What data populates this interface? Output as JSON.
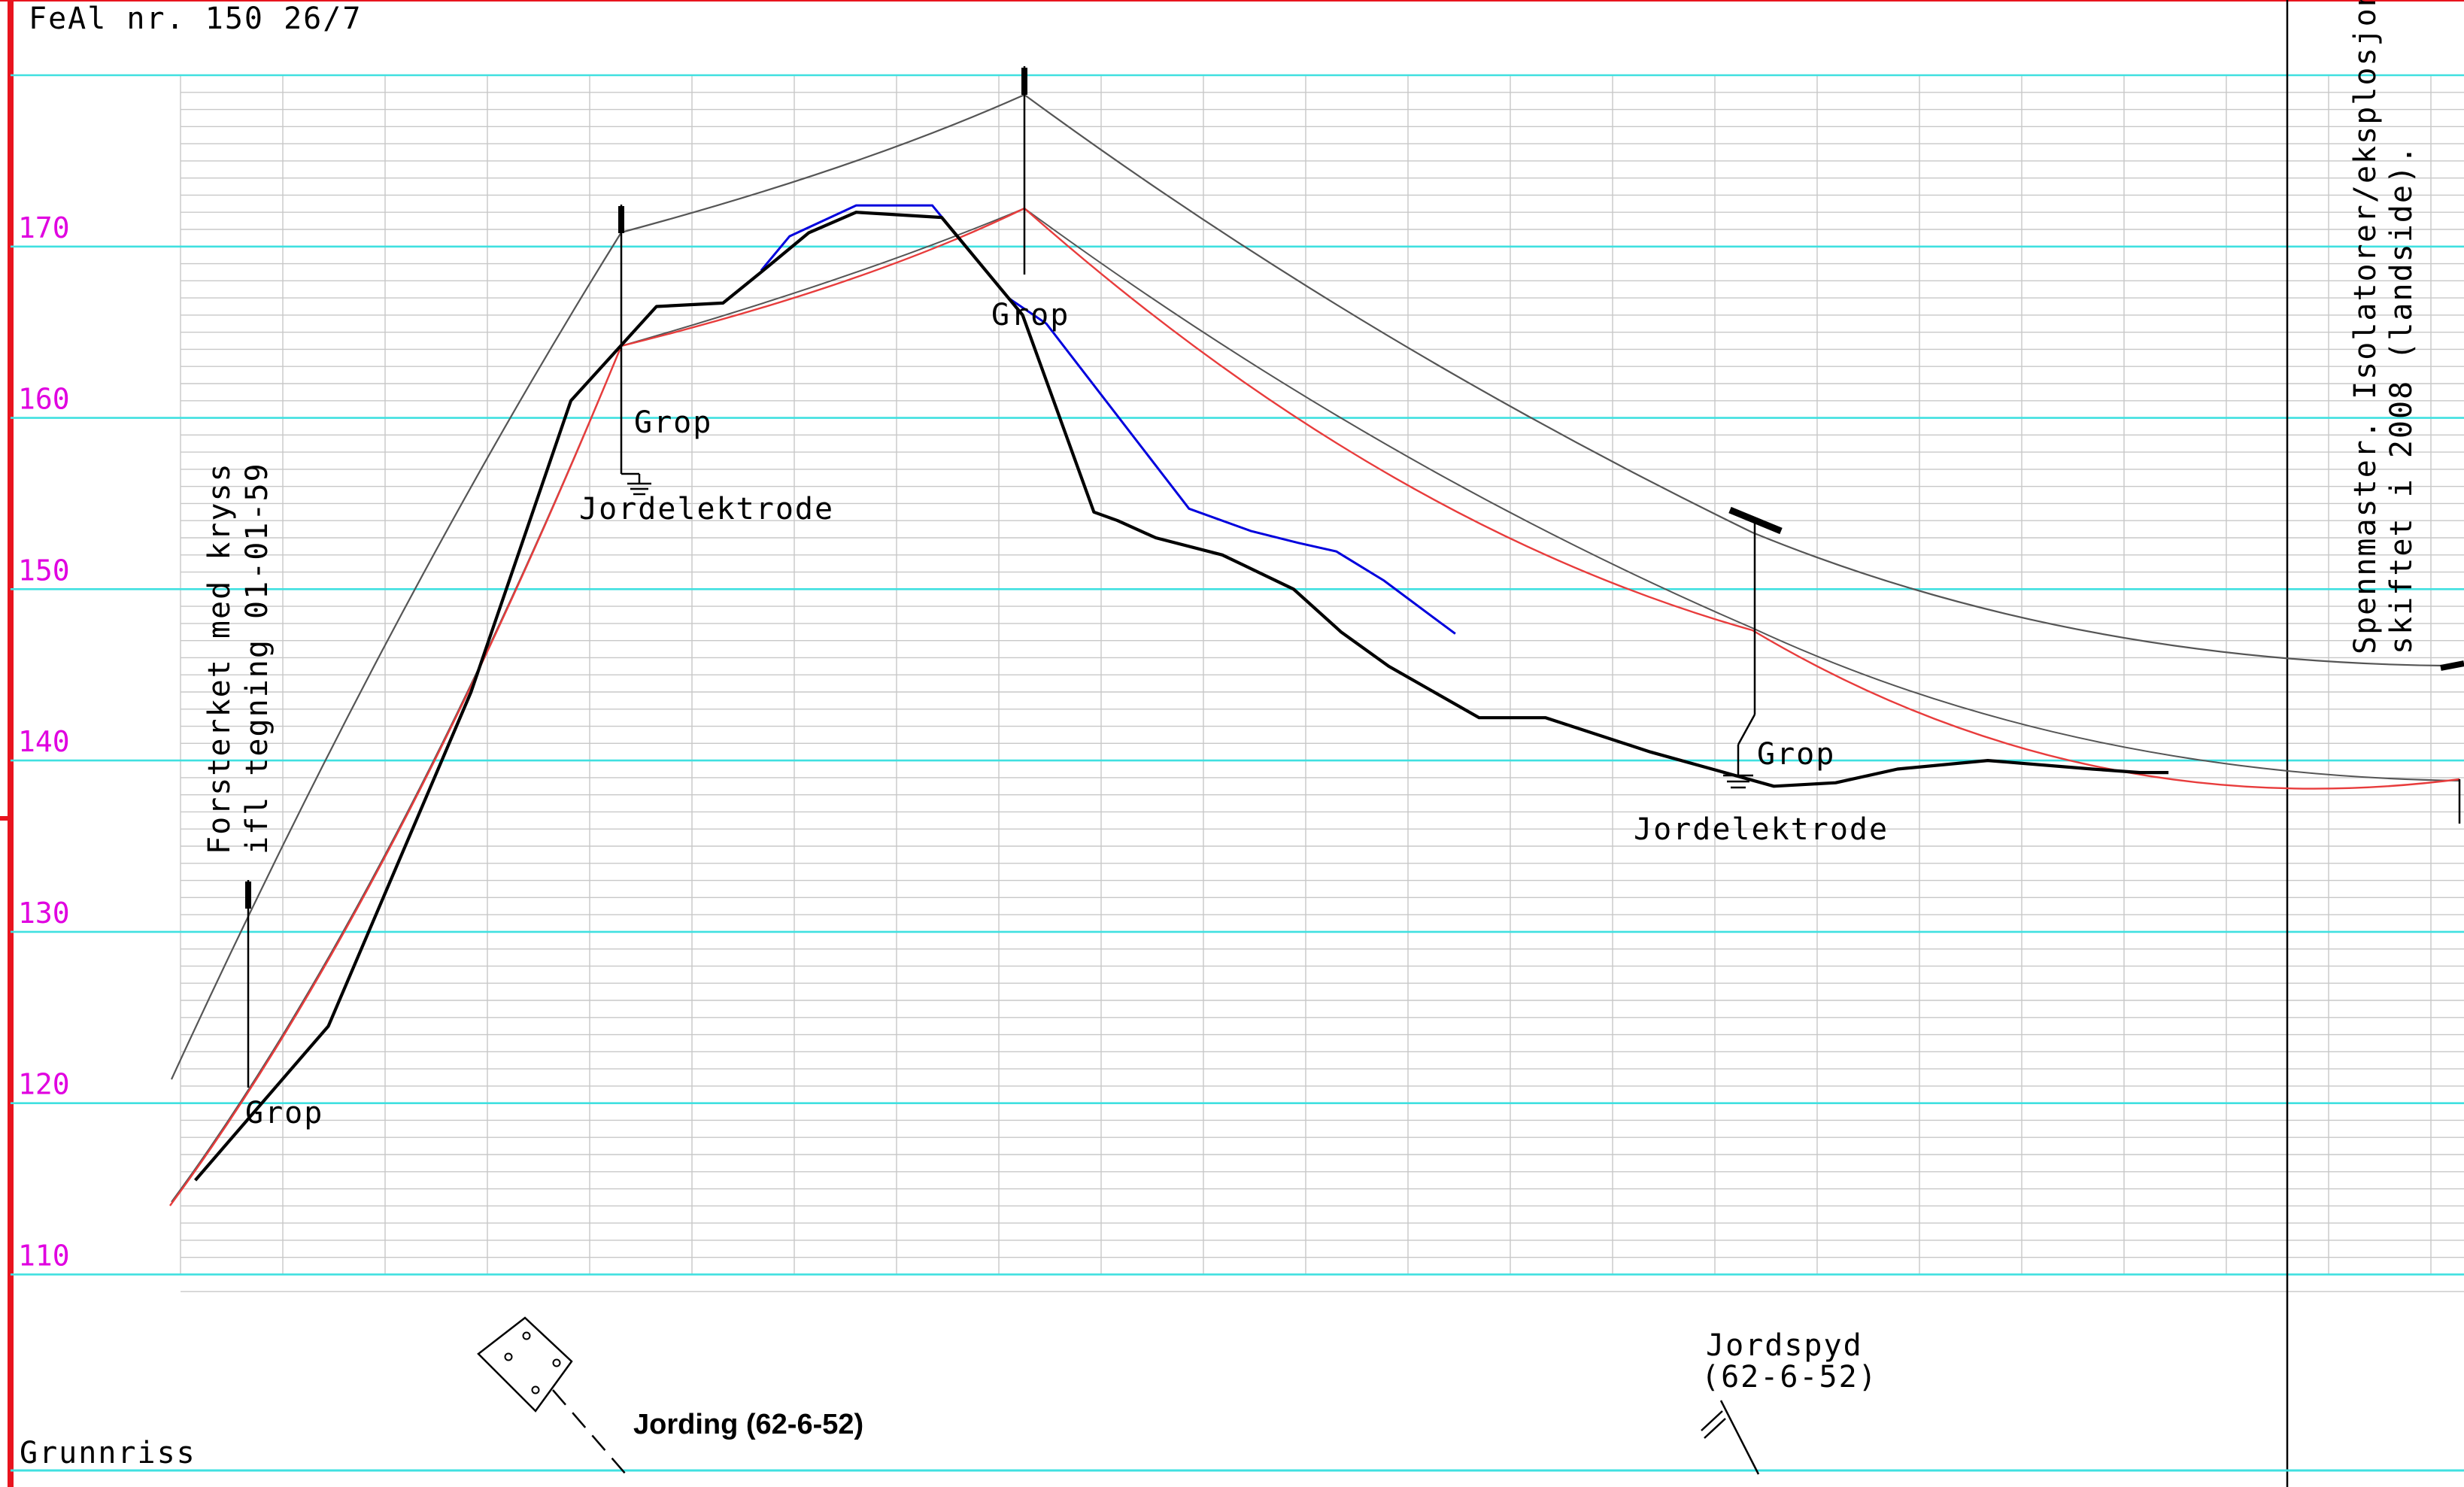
{
  "drawing_title": "FeAl nr. 150 26/7",
  "plan_label": "Grunnriss",
  "y_axis": {
    "min": 108,
    "max": 180,
    "ticks": [
      110,
      120,
      130,
      140,
      150,
      160,
      170
    ]
  },
  "annotations": {
    "left_note": [
      "Forsterket med kryss",
      "ifl tegning 01-01-59"
    ],
    "right_note": [
      "Spennmaster. Isolatorer/eksplosjon",
      "skiftet i 2008 (landside)."
    ],
    "grop": "Grop",
    "jordelektrode": "Jordelektrode",
    "jording": "Jording  (62-6-52)",
    "jordspyd": [
      "Jordspyd",
      "(62-6-52)"
    ]
  },
  "colors": {
    "frame": "#e8141e",
    "gridline": "#40e0e0",
    "minor_grid": "#c8c8c8",
    "elevation_label": "#e000e0",
    "terrain": "#000000",
    "survey_line": "#0000dd",
    "conductor_sag": "#e83c3c",
    "top_wire": "#444444"
  },
  "chart_data": {
    "type": "line",
    "ylim": [
      108,
      180
    ],
    "series": [
      {
        "x": [
          0.5,
          3.3,
          6.3,
          8.4,
          10.2,
          11.6,
          12.4,
          13.4,
          14.4,
          16.2,
          17.9,
          19.4,
          19.9,
          20.7,
          22.1,
          23.6,
          24.6,
          25.6,
          27.5,
          28.9,
          31.1,
          33.7,
          35.0,
          36.3,
          38.2,
          40.4,
          41.4,
          42.0
        ],
        "y": [
          115.5,
          124.5,
          144.0,
          161.0,
          166.5,
          166.7,
          168.5,
          170.8,
          172.0,
          171.7,
          166.0,
          154.5,
          154.0,
          153.0,
          152.0,
          150.0,
          147.5,
          145.5,
          142.5,
          142.5,
          140.5,
          138.5,
          138.7,
          139.5,
          140.0,
          139.5,
          139.3,
          139.3
        ]
      },
      {
        "x": [
          12.4,
          13.0,
          14.4,
          16.0,
          17.6,
          18.4,
          21.4,
          22.7,
          23.7,
          24.5,
          25.5,
          27.0
        ],
        "y": [
          168.6,
          170.6,
          172.4,
          172.4,
          167.0,
          165.5,
          154.7,
          153.4,
          152.7,
          152.2,
          150.5,
          147.4
        ]
      },
      {
        "x": [
          0.0,
          4.4,
          9.1,
          14.1,
          20.4,
          26.0,
          33.0,
          37.5,
          42.0
        ],
        "y": [
          115.7,
          127.6,
          151.7,
          168.3,
          176.8,
          151.1,
          141.7,
          141.7,
          141.5
        ]
      },
      {
        "x": [
          0.0,
          4.4,
          9.1,
          14.1,
          20.4,
          26.0,
          33.0,
          37.5,
          42.0
        ],
        "y": [
          122.5,
          133.8,
          159.1,
          175.4,
          184.1,
          157.1,
          149.5,
          149.3,
          150.5
        ]
      }
    ]
  }
}
